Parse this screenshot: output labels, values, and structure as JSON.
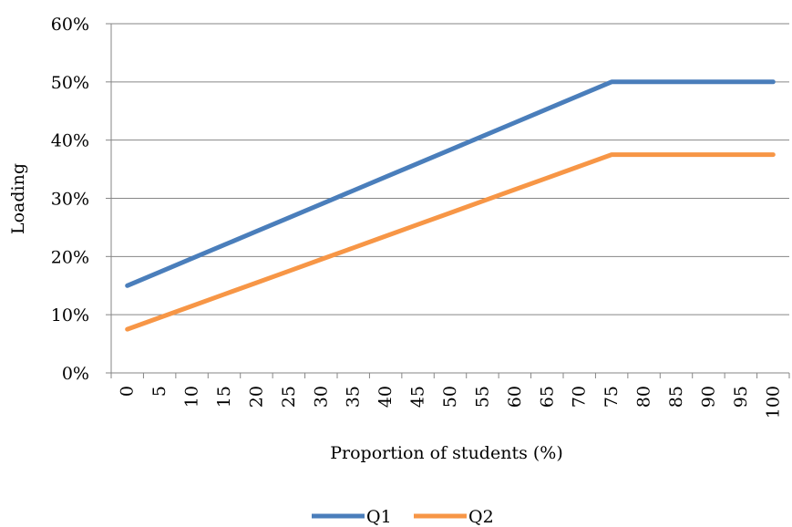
{
  "chart_data": {
    "type": "line",
    "title": "",
    "xlabel": "Proportion of students (%)",
    "ylabel": "Loading",
    "x": [
      0,
      5,
      10,
      15,
      20,
      25,
      30,
      35,
      40,
      45,
      50,
      55,
      60,
      65,
      70,
      75,
      80,
      85,
      90,
      95,
      100
    ],
    "ylim": [
      0,
      0.6
    ],
    "yticks": [
      "0%",
      "10%",
      "20%",
      "30%",
      "40%",
      "50%",
      "60%"
    ],
    "grid": true,
    "legend_position": "bottom",
    "series": [
      {
        "name": "Q1",
        "color": "#4a7ebb",
        "values": [
          0.15,
          0.1733,
          0.1967,
          0.22,
          0.2433,
          0.2667,
          0.29,
          0.3133,
          0.3367,
          0.36,
          0.3833,
          0.4067,
          0.43,
          0.4533,
          0.4767,
          0.5,
          0.5,
          0.5,
          0.5,
          0.5,
          0.5
        ]
      },
      {
        "name": "Q2",
        "color": "#f79646",
        "values": [
          0.075,
          0.095,
          0.115,
          0.135,
          0.155,
          0.175,
          0.195,
          0.215,
          0.235,
          0.255,
          0.275,
          0.295,
          0.315,
          0.335,
          0.355,
          0.375,
          0.375,
          0.375,
          0.375,
          0.375,
          0.375
        ]
      }
    ]
  }
}
